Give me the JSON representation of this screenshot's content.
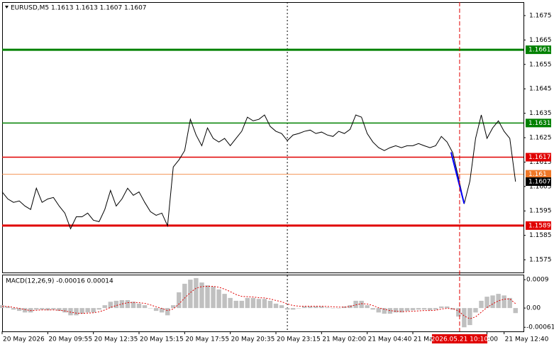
{
  "chart_data": {
    "type": "line",
    "title": "EURUSD,M5  1.1613 1.1613 1.1607 1.1607",
    "color": "#000000",
    "xlim": [
      0,
      91.4
    ],
    "ylim": [
      1.15695,
      1.16805
    ],
    "yticks": [
      1.1675,
      1.1665,
      1.1655,
      1.1645,
      1.1635,
      1.1625,
      1.1615,
      1.1605,
      1.1595,
      1.1585,
      1.1575
    ],
    "xticks": [
      {
        "value": 0,
        "label": "20 May 2026"
      },
      {
        "value": 8,
        "label": "20 May 09:55"
      },
      {
        "value": 16,
        "label": "20 May 12:35"
      },
      {
        "value": 24,
        "label": "20 May 15:15"
      },
      {
        "value": 32,
        "label": "20 May 17:55"
      },
      {
        "value": 40,
        "label": "20 May 20:35"
      },
      {
        "value": 48,
        "label": "20 May 23:15"
      },
      {
        "value": 56,
        "label": "21 May 02:00"
      },
      {
        "value": 64,
        "label": "21 May 04:40"
      },
      {
        "value": 72,
        "label": "21 May"
      },
      {
        "value": 85,
        "label": ":00"
      },
      {
        "value": 88,
        "label": "21 May 12:40"
      }
    ],
    "values": [
      1.16028,
      1.15999,
      1.15985,
      1.15991,
      1.1597,
      1.15956,
      1.16043,
      1.15985,
      1.15999,
      1.16005,
      1.1597,
      1.15941,
      1.15877,
      1.15926,
      1.15926,
      1.15941,
      1.15912,
      1.15906,
      1.15956,
      1.16034,
      1.1597,
      1.15999,
      1.16043,
      1.16014,
      1.16028,
      1.15985,
      1.15947,
      1.15932,
      1.15941,
      1.15889,
      1.1613,
      1.16159,
      1.16197,
      1.16325,
      1.16261,
      1.16217,
      1.1629,
      1.16247,
      1.16232,
      1.16247,
      1.16217,
      1.16247,
      1.16276,
      1.16334,
      1.16319,
      1.16325,
      1.16343,
      1.16296,
      1.16276,
      1.16267,
      1.16238,
      1.16261,
      1.16267,
      1.16276,
      1.16281,
      1.16267,
      1.16273,
      1.16261,
      1.16255,
      1.16276,
      1.16267,
      1.16284,
      1.16343,
      1.16334,
      1.16267,
      1.16232,
      1.16209,
      1.16197,
      1.16209,
      1.16217,
      1.16209,
      1.16217,
      1.16217,
      1.16226,
      1.16217,
      1.16209,
      1.16217,
      1.16255,
      1.16232,
      1.16188,
      1.16087,
      1.15979,
      1.16072,
      1.16247,
      1.16343,
      1.16247,
      1.1629,
      1.16319,
      1.16276,
      1.16247,
      1.1607
    ],
    "levels": [
      {
        "value": 1.1661,
        "color": "#008000",
        "style": "thick"
      },
      {
        "value": 1.1631,
        "color": "#008000",
        "style": "thin"
      },
      {
        "value": 1.1617,
        "color": "#e00000",
        "style": "thin"
      },
      {
        "value": 1.161,
        "color": "#f07828",
        "style": "hair"
      },
      {
        "value": 1.1589,
        "color": "#e00000",
        "style": "thick"
      },
      {
        "value": 1.1607,
        "color": "#000000",
        "style": "none"
      }
    ],
    "trend_line": {
      "color": "#0000ff",
      "x": [
        78.7,
        81
      ],
      "values": [
        1.1619,
        1.1598
      ]
    },
    "vlines": [
      {
        "value": 50,
        "color": "#000000",
        "style": "dotted"
      }
    ],
    "cursor": {
      "value": 80.2,
      "label": "2026.05.21 10:10",
      "color": "#e00000"
    },
    "macd": {
      "title": "MACD(12,26,9) -0.00016 0.00014",
      "ylim": [
        -0.00074,
        0.00106
      ],
      "yticks": [
        0.0009,
        {
          "value": 0,
          "label": "0.00"
        },
        -0.00061
      ],
      "histogram": {
        "color": "#c0c0c0",
        "values": [
          9e-05,
          5e-05,
          -5e-05,
          -9e-05,
          -0.00014,
          -0.00014,
          -5e-05,
          -5e-05,
          -7e-05,
          -5e-05,
          -9e-05,
          -0.00014,
          -0.00023,
          -0.00023,
          -0.00018,
          -0.00014,
          -0.00014,
          -5e-05,
          9e-05,
          0.0002,
          0.00023,
          0.00025,
          0.00025,
          0.0002,
          0.00014,
          9e-05,
          0,
          -9e-05,
          -0.00014,
          -0.00023,
          9e-05,
          0.0005,
          0.00077,
          0.0009,
          0.00095,
          0.00081,
          0.00072,
          0.00068,
          0.00059,
          0.00045,
          0.00032,
          0.00023,
          0.00023,
          0.00032,
          0.00032,
          0.00029,
          0.00029,
          0.00023,
          0.00014,
          9e-05,
          -5e-05,
          -5e-05,
          0,
          5e-05,
          5e-05,
          5e-05,
          5e-05,
          2e-05,
          0,
          0,
          5e-05,
          9e-05,
          0.00023,
          0.00023,
          9e-05,
          -5e-05,
          -0.00014,
          -0.00018,
          -0.00018,
          -0.00014,
          -0.00014,
          -9e-05,
          -7e-05,
          -5e-05,
          -5e-05,
          -7e-05,
          -5e-05,
          5e-05,
          5e-05,
          -5e-05,
          -0.00027,
          -0.00061,
          -0.00054,
          -0.00014,
          0.00023,
          0.00036,
          0.0004,
          0.00045,
          0.0004,
          0.00032,
          -0.00016
        ]
      },
      "signal": {
        "color": "#e00000",
        "values": [
          5e-05,
          5e-05,
          2e-05,
          -1e-05,
          -5e-05,
          -8e-05,
          -7e-05,
          -6e-05,
          -6e-05,
          -6e-05,
          -7e-05,
          -9e-05,
          -0.00013,
          -0.00016,
          -0.00017,
          -0.00016,
          -0.00015,
          -0.00012,
          -6e-05,
          2e-05,
          8e-05,
          0.00013,
          0.00017,
          0.00018,
          0.00017,
          0.00015,
          0.0001,
          4e-05,
          -1e-05,
          -8e-05,
          -3e-05,
          0.00013,
          0.00032,
          0.00049,
          0.00063,
          0.00068,
          0.00069,
          0.00069,
          0.00066,
          0.0006,
          0.00052,
          0.00043,
          0.00037,
          0.00036,
          0.00035,
          0.00033,
          0.00032,
          0.00029,
          0.00024,
          0.0002,
          0.00013,
          8e-05,
          6e-05,
          6e-05,
          6e-05,
          6e-05,
          6e-05,
          5e-05,
          4e-05,
          3e-05,
          3e-05,
          5e-05,
          0.0001,
          0.00014,
          0.00013,
          8e-05,
          1e-05,
          -4e-05,
          -8e-05,
          -0.0001,
          -0.00011,
          -0.00011,
          -0.0001,
          -9e-05,
          -8e-05,
          -8e-05,
          -7e-05,
          -3e-05,
          -1e-05,
          -2e-05,
          -9e-05,
          -0.00025,
          -0.00034,
          -0.00028,
          -0.00013,
          2e-05,
          0.00013,
          0.00023,
          0.00028,
          0.00029,
          0.00014
        ]
      }
    }
  }
}
